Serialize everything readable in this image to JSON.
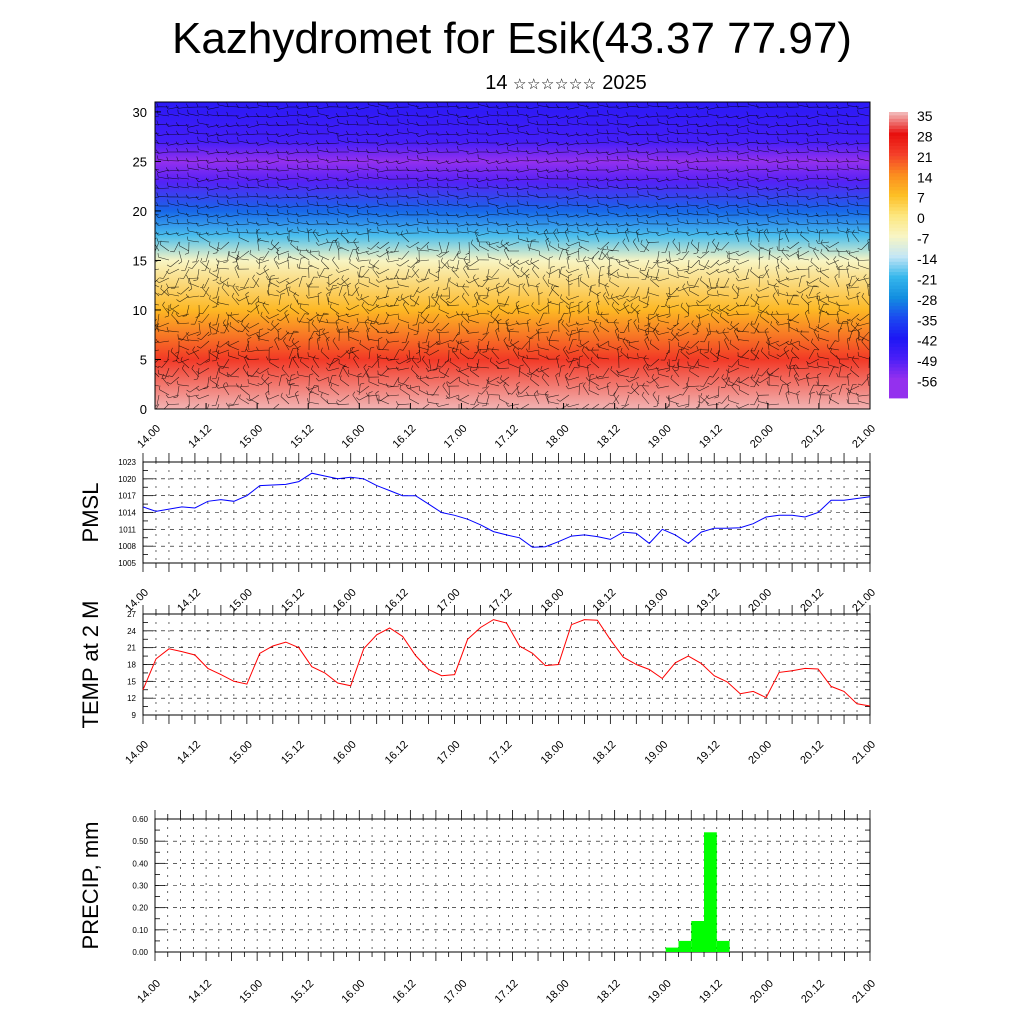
{
  "header": {
    "title": "Kazhydromet for Esik(43.37 77.97)",
    "date_day": "14",
    "date_month_glyphs": "☆☆☆☆☆☆",
    "date_year": "2025"
  },
  "colors": {
    "pmsl_line": "#0000ff",
    "temp_line": "#ff0000",
    "precip_bar": "#00ff00",
    "wind_barb": "#000000",
    "grid": "#000000"
  },
  "chart_data": [
    {
      "type": "heatmap",
      "name": "cross-section",
      "xlabel": "",
      "ylabel": "",
      "ylim": [
        0,
        31
      ],
      "yticks": [
        "0",
        "5",
        "10",
        "15",
        "20",
        "25",
        "30"
      ],
      "ytick_values": [
        0,
        5,
        10,
        15,
        20,
        25,
        30
      ],
      "xticks": [
        "14.00",
        "14.12",
        "15.00",
        "15.12",
        "16.00",
        "16.12",
        "17.00",
        "17.12",
        "18.00",
        "18.12",
        "19.00",
        "19.12",
        "20.00",
        "20.12",
        "21.00"
      ],
      "colorbar_labels": [
        "35",
        "28",
        "21",
        "14",
        "7",
        "0",
        "-7",
        "-14",
        "-21",
        "-28",
        "-35",
        "-42",
        "-49",
        "-56"
      ],
      "colorbar_colors": [
        "#f2b4b4",
        "#e8100e",
        "#f4402a",
        "#fb8d1f",
        "#fdbf25",
        "#fde77f",
        "#f8f5c4",
        "#c3e6f5",
        "#36b7ec",
        "#128ee0",
        "#1b49f0",
        "#1d17f5",
        "#4b1ff7",
        "#9430ee"
      ],
      "temperature_profile": [
        {
          "level": 0,
          "value": 35
        },
        {
          "level": 5,
          "value": 22
        },
        {
          "level": 10,
          "value": 8
        },
        {
          "level": 15,
          "value": -7
        },
        {
          "level": 17.5,
          "value": -20
        },
        {
          "level": 20,
          "value": -32
        },
        {
          "level": 23,
          "value": -50
        },
        {
          "level": 25,
          "value": -56
        },
        {
          "level": 27,
          "value": -48
        },
        {
          "level": 31,
          "value": -44
        }
      ],
      "wind_barbs": true
    },
    {
      "type": "line",
      "name": "PMSL",
      "ylabel": "PMSL",
      "ylim": [
        1005,
        1023
      ],
      "yticks": [
        "1023",
        "1020",
        "1017",
        "1014",
        "1011",
        "1008",
        "1005"
      ],
      "ytick_values": [
        1023,
        1020,
        1017,
        1014,
        1011,
        1008,
        1005
      ],
      "xticks": [
        "14.00",
        "14.12",
        "15.00",
        "15.12",
        "16.00",
        "16.12",
        "17.00",
        "17.12",
        "18.00",
        "18.12",
        "19.00",
        "19.12",
        "20.00",
        "20.12",
        "21.00"
      ],
      "grid": true,
      "series": [
        {
          "x": [
            0,
            3,
            6,
            9,
            12,
            15,
            18,
            21,
            24,
            27,
            30,
            33,
            36,
            39,
            42,
            45,
            48,
            51,
            54,
            57,
            60,
            63,
            66,
            69,
            72,
            75,
            78,
            81,
            84,
            87,
            90,
            93,
            96,
            99,
            102,
            105,
            108,
            111,
            114,
            117,
            120,
            123,
            126,
            129,
            132,
            135,
            138,
            141,
            144,
            147,
            150,
            153,
            156,
            159,
            162,
            165,
            168
          ],
          "y": [
            1015,
            1014.2,
            1014.6,
            1015,
            1014.8,
            1016,
            1016.3,
            1016,
            1017,
            1018.8,
            1018.9,
            1019,
            1019.5,
            1021,
            1020.5,
            1020,
            1020.3,
            1020,
            1018.8,
            1017.9,
            1017,
            1017,
            1015.5,
            1014,
            1013.5,
            1012.8,
            1011.8,
            1010.6,
            1010,
            1009.5,
            1007.8,
            1007.9,
            1008.8,
            1009.8,
            1010,
            1009.7,
            1009.2,
            1010.5,
            1010.3,
            1008.5,
            1011,
            1010,
            1008.5,
            1010.5,
            1011.2,
            1011.2,
            1011.3,
            1012,
            1013.2,
            1013.5,
            1013.5,
            1013.2,
            1014,
            1016.2,
            1016.2,
            1016.5,
            1016.8
          ]
        }
      ]
    },
    {
      "type": "line",
      "name": "TEMP at 2 M",
      "ylabel": "TEMP at 2 M",
      "ylim": [
        9,
        27
      ],
      "yticks": [
        "27",
        "24",
        "21",
        "18",
        "15",
        "12",
        "9"
      ],
      "ytick_values": [
        27,
        24,
        21,
        18,
        15,
        12,
        9
      ],
      "xticks": [
        "14.00",
        "14.12",
        "15.00",
        "15.12",
        "16.00",
        "16.12",
        "17.00",
        "17.12",
        "18.00",
        "18.12",
        "19.00",
        "19.12",
        "20.00",
        "20.12",
        "21.00"
      ],
      "grid": true,
      "series": [
        {
          "x": [
            0,
            3,
            6,
            9,
            12,
            15,
            18,
            21,
            24,
            27,
            30,
            33,
            36,
            39,
            42,
            45,
            48,
            51,
            54,
            57,
            60,
            63,
            66,
            69,
            72,
            75,
            78,
            81,
            84,
            87,
            90,
            93,
            96,
            99,
            102,
            105,
            108,
            111,
            114,
            117,
            120,
            123,
            126,
            129,
            132,
            135,
            138,
            141,
            144,
            147,
            150,
            153,
            156,
            159,
            162,
            165,
            168
          ],
          "y": [
            13.5,
            19,
            20.8,
            20.3,
            19.7,
            17.3,
            16.2,
            15,
            14.5,
            20,
            21.3,
            22,
            21,
            17.6,
            16.5,
            14.7,
            14.2,
            20.8,
            23.3,
            24.5,
            23,
            19.6,
            17.1,
            16,
            16.2,
            22.5,
            24.6,
            26,
            25.4,
            21.3,
            20,
            17.8,
            18,
            25.1,
            26,
            25.9,
            22.4,
            19.3,
            18,
            17.1,
            15.5,
            18.3,
            19.5,
            18.2,
            16,
            14.9,
            12.8,
            13.2,
            12.1,
            16.6,
            16.9,
            17.3,
            17.2,
            14.1,
            13.2,
            11,
            10.6
          ]
        }
      ]
    },
    {
      "type": "bar",
      "name": "PRECIP, mm",
      "ylabel": "PRECIP, mm",
      "ylim": [
        0,
        0.6
      ],
      "yticks": [
        "0.60",
        "0.50",
        "0.40",
        "0.30",
        "0.20",
        "0.10",
        "0.00"
      ],
      "ytick_values": [
        0.6,
        0.5,
        0.4,
        0.3,
        0.2,
        0.1,
        0
      ],
      "xticks": [
        "14.00",
        "14.12",
        "15.00",
        "15.12",
        "16.00",
        "16.12",
        "17.00",
        "17.12",
        "18.00",
        "18.12",
        "19.00",
        "19.12",
        "20.00",
        "20.12",
        "21.00"
      ],
      "grid": true,
      "bars": [
        {
          "x": 121.5,
          "value": 0.02
        },
        {
          "x": 124.5,
          "value": 0.05
        },
        {
          "x": 127.5,
          "value": 0.14
        },
        {
          "x": 130.5,
          "value": 0.54
        },
        {
          "x": 133.5,
          "value": 0.05
        }
      ]
    }
  ]
}
